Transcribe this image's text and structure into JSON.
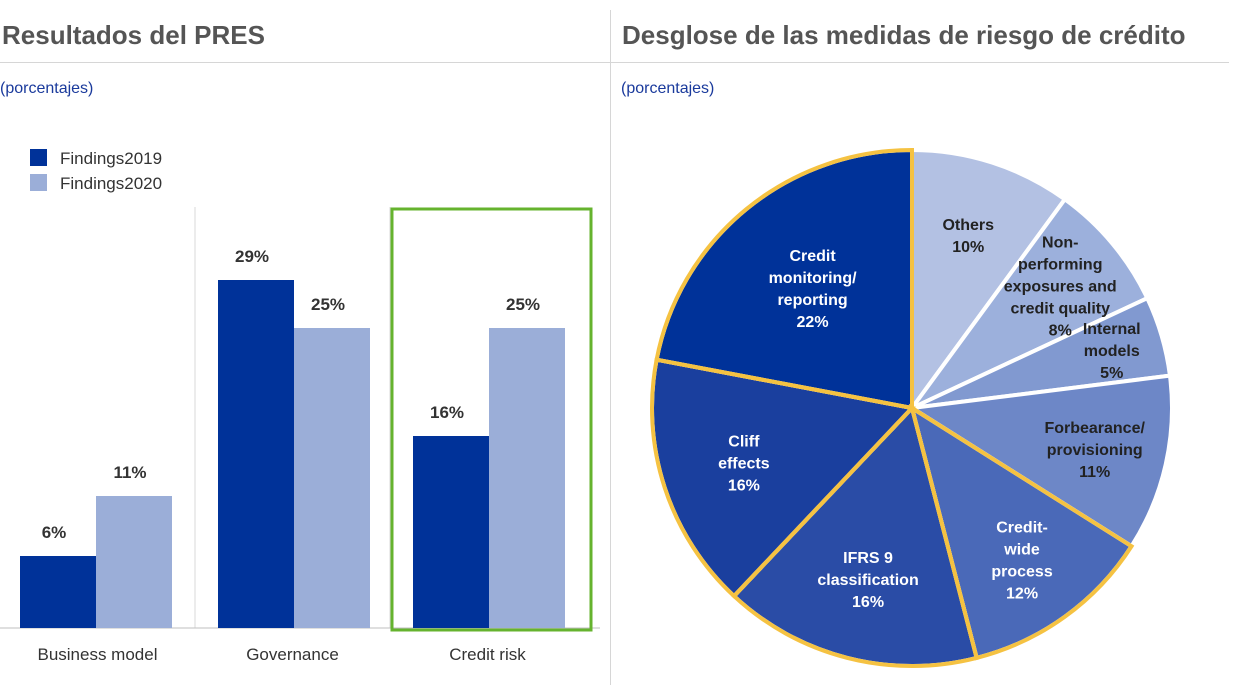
{
  "left_panel": {
    "title": "Resultados del PRES",
    "subtitle": "(porcentajes)"
  },
  "right_panel": {
    "title": "Desglose de las medidas de riesgo de crédito",
    "subtitle": "(porcentajes)"
  },
  "chart_data": [
    {
      "type": "bar",
      "title": "Resultados del PRES",
      "subtitle": "(porcentajes)",
      "categories": [
        "Business model",
        "Governance",
        "Credit risk"
      ],
      "series": [
        {
          "name": "Findings2019",
          "values": [
            6,
            29,
            16
          ],
          "labels": [
            "6%",
            "29%",
            "16%"
          ],
          "color": "#003299"
        },
        {
          "name": "Findings2020",
          "values": [
            11,
            25,
            25
          ],
          "labels": [
            "11%",
            "25%",
            "25%"
          ],
          "color": "#9baed8"
        }
      ],
      "highlight_category": "Credit risk",
      "highlight_color": "#65b32e",
      "legend_position": "top-left",
      "ylim": [
        0,
        35
      ],
      "grid": false
    },
    {
      "type": "pie",
      "title": "Desglose de las medidas de riesgo de crédito",
      "subtitle": "(porcentajes)",
      "highlight_color": "#f5c242",
      "slices": [
        {
          "name": "Others",
          "lines": [
            "Others",
            "10%"
          ],
          "value": 10,
          "color": "#b3c1e3",
          "text_color": "#222222",
          "highlight": false
        },
        {
          "name": "Non-performing exposures and credit quality",
          "lines": [
            "Non-",
            "performing",
            "exposures and",
            "credit quality",
            "8%"
          ],
          "value": 8,
          "color": "#9cb0dc",
          "text_color": "#222222",
          "highlight": false
        },
        {
          "name": "Internal models",
          "lines": [
            "Internal",
            "models",
            "5%"
          ],
          "value": 5,
          "color": "#8199d0",
          "text_color": "#222222",
          "highlight": false
        },
        {
          "name": "Forbearance/ provisioning",
          "lines": [
            "Forbearance/",
            "provisioning",
            "11%"
          ],
          "value": 11,
          "color": "#6d87c7",
          "text_color": "#222222",
          "highlight": false
        },
        {
          "name": "Credit-wide process",
          "lines": [
            "Credit-",
            "wide",
            "process",
            "12%"
          ],
          "value": 12,
          "color": "#4a69b8",
          "text_color": "#ffffff",
          "highlight": true
        },
        {
          "name": "IFRS 9 classification",
          "lines": [
            "IFRS 9",
            "classification",
            "16%"
          ],
          "value": 16,
          "color": "#2a4ca6",
          "text_color": "#ffffff",
          "highlight": true
        },
        {
          "name": "Cliff effects",
          "lines": [
            "Cliff",
            "effects",
            "16%"
          ],
          "value": 16,
          "color": "#1a3f9e",
          "text_color": "#ffffff",
          "highlight": true
        },
        {
          "name": "Credit monitoring/ reporting",
          "lines": [
            "Credit",
            "monitoring/",
            "reporting",
            "22%"
          ],
          "value": 22,
          "color": "#003299",
          "text_color": "#ffffff",
          "highlight": true
        }
      ]
    }
  ]
}
